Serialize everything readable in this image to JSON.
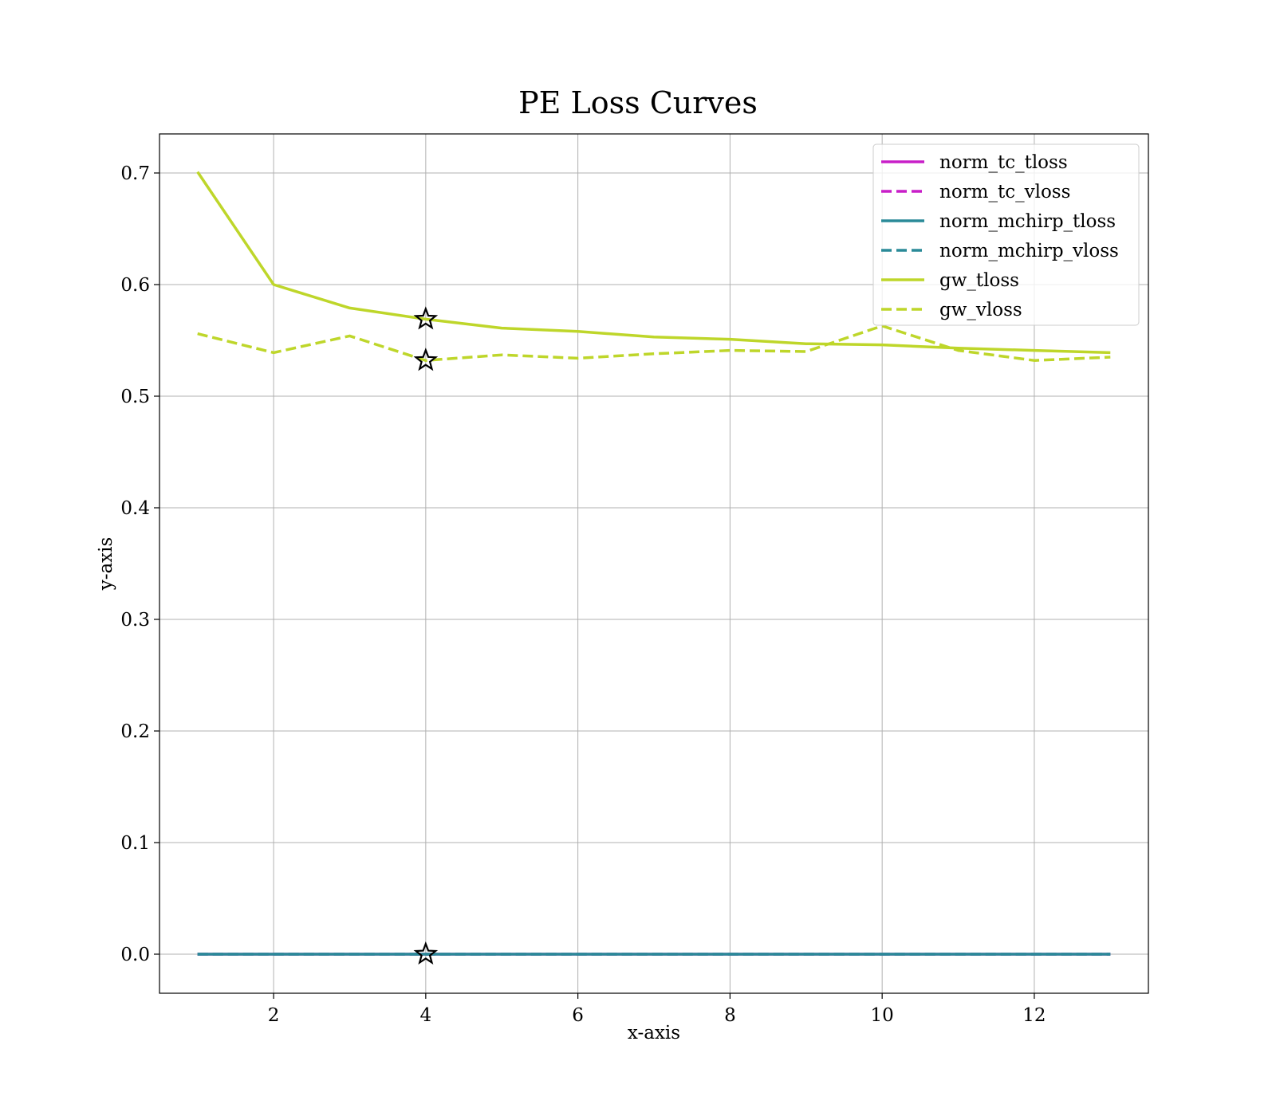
{
  "chart_data": {
    "type": "line",
    "title": "PE Loss Curves",
    "xlabel": "x-axis",
    "ylabel": "y-axis",
    "xlim": [
      0.5,
      13.5
    ],
    "ylim": [
      -0.035,
      0.735
    ],
    "xticks": [
      2,
      4,
      6,
      8,
      10,
      12
    ],
    "yticks": [
      0.0,
      0.1,
      0.2,
      0.3,
      0.4,
      0.5,
      0.6,
      0.7
    ],
    "ytick_labels": [
      "0.0",
      "0.1",
      "0.2",
      "0.3",
      "0.4",
      "0.5",
      "0.6",
      "0.7"
    ],
    "grid": true,
    "legend_position": "top-right",
    "x": [
      1,
      2,
      3,
      4,
      5,
      6,
      7,
      8,
      9,
      10,
      11,
      12,
      13
    ],
    "series": [
      {
        "name": "norm_tc_tloss",
        "color": "#c81ec8",
        "style": "solid",
        "values": [
          0.0,
          0.0,
          0.0,
          0.0,
          0.0,
          0.0,
          0.0,
          0.0,
          0.0,
          0.0,
          0.0,
          0.0,
          0.0
        ]
      },
      {
        "name": "norm_tc_vloss",
        "color": "#c81ec8",
        "style": "dashed",
        "values": [
          0.0,
          0.0,
          0.0,
          0.0,
          0.0,
          0.0,
          0.0,
          0.0,
          0.0,
          0.0,
          0.0,
          0.0,
          0.0
        ]
      },
      {
        "name": "norm_mchirp_tloss",
        "color": "#2a8a98",
        "style": "solid",
        "values": [
          0.0,
          0.0,
          0.0,
          0.0,
          0.0,
          0.0,
          0.0,
          0.0,
          0.0,
          0.0,
          0.0,
          0.0,
          0.0
        ]
      },
      {
        "name": "norm_mchirp_vloss",
        "color": "#2a8a98",
        "style": "dashed",
        "values": [
          0.0,
          0.0,
          0.0,
          0.0,
          0.0,
          0.0,
          0.0,
          0.0,
          0.0,
          0.0,
          0.0,
          0.0,
          0.0
        ]
      },
      {
        "name": "gw_tloss",
        "color": "#bed62a",
        "style": "solid",
        "values": [
          0.701,
          0.6,
          0.579,
          0.569,
          0.561,
          0.558,
          0.553,
          0.551,
          0.547,
          0.546,
          0.543,
          0.541,
          0.539
        ]
      },
      {
        "name": "gw_vloss",
        "color": "#bed62a",
        "style": "dashed",
        "values": [
          0.556,
          0.539,
          0.554,
          0.532,
          0.537,
          0.534,
          0.538,
          0.541,
          0.54,
          0.563,
          0.541,
          0.532,
          0.535
        ]
      }
    ],
    "markers": [
      {
        "x": 4,
        "y": 0.569,
        "symbol": "star"
      },
      {
        "x": 4,
        "y": 0.532,
        "symbol": "star"
      },
      {
        "x": 4,
        "y": 0.0,
        "symbol": "star"
      }
    ]
  }
}
